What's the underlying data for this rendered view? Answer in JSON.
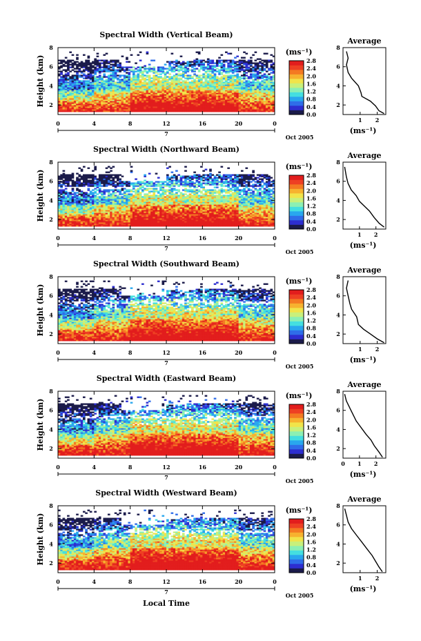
{
  "figure": {
    "xlabel": "Local Time",
    "date_label": "Oct 2005",
    "day_label": "7",
    "colorbar": {
      "unit_label": "(ms⁻¹)",
      "ticks": [
        "0.0",
        "0.4",
        "0.8",
        "1.2",
        "1.6",
        "2.0",
        "2.4",
        "2.8"
      ],
      "colors": [
        "#1b1b4a",
        "#2d2ed0",
        "#2f6de9",
        "#29a7ee",
        "#44dfe0",
        "#8cf0b4",
        "#c9f07b",
        "#f1e44a",
        "#f7b22f",
        "#f47a22",
        "#ee4023",
        "#e21d1d"
      ],
      "range": [
        0.0,
        2.8
      ]
    },
    "average_title": "Average",
    "average_unit_label": "(ms⁻¹)"
  },
  "chart_data": [
    {
      "type": "heatmap",
      "title": "Spectral Width (Vertical Beam)",
      "xlabel": "Local Time",
      "ylabel": "Height (km)",
      "x_ticks": [
        "0",
        "4",
        "8",
        "12",
        "16",
        "20",
        "0"
      ],
      "y_ticks": [
        "2",
        "4",
        "6",
        "8"
      ],
      "xlim": [
        0,
        24
      ],
      "ylim": [
        1,
        8
      ],
      "zlim": [
        0,
        2.8
      ],
      "z_unit": "ms⁻¹",
      "average_profile": {
        "title": "Average",
        "xlabel": "(ms⁻¹)",
        "x_ticks": [
          "1",
          "2"
        ],
        "y_ticks": [
          "2",
          "4",
          "6",
          "8"
        ],
        "xlim": [
          0,
          2.5
        ],
        "ylim": [
          1,
          8
        ],
        "width": [
          2.4,
          2.1,
          1.9,
          1.6,
          1.1,
          1.05,
          0.9,
          0.5,
          0.3,
          0.2,
          0.3,
          0.2
        ],
        "height": [
          1.1,
          1.4,
          1.9,
          2.4,
          2.9,
          3.3,
          4.0,
          4.8,
          5.4,
          6.2,
          6.9,
          7.6
        ]
      }
    },
    {
      "type": "heatmap",
      "title": "Spectral Width (Northward Beam)",
      "xlabel": "Local Time",
      "ylabel": "Height (km)",
      "x_ticks": [
        "0",
        "4",
        "8",
        "12",
        "16",
        "20",
        "0"
      ],
      "y_ticks": [
        "2",
        "4",
        "6",
        "8"
      ],
      "xlim": [
        0,
        24
      ],
      "ylim": [
        1,
        8
      ],
      "zlim": [
        0,
        2.8
      ],
      "z_unit": "ms⁻¹",
      "average_profile": {
        "title": "Average",
        "xlabel": "(ms⁻¹)",
        "x_ticks": [
          "1",
          "2"
        ],
        "y_ticks": [
          "2",
          "4",
          "6",
          "8"
        ],
        "xlim": [
          0,
          2.6
        ],
        "ylim": [
          1,
          8
        ],
        "width": [
          2.5,
          2.2,
          1.9,
          1.6,
          1.3,
          1.0,
          0.8,
          0.5,
          0.3,
          0.2,
          0.1
        ],
        "height": [
          1.2,
          1.6,
          2.2,
          2.9,
          3.4,
          3.9,
          4.5,
          5.1,
          5.8,
          6.5,
          7.5
        ]
      }
    },
    {
      "type": "heatmap",
      "title": "Spectral Width (Southward Beam)",
      "xlabel": "Local Time",
      "ylabel": "Height (km)",
      "x_ticks": [
        "0",
        "4",
        "8",
        "12",
        "16",
        "20",
        "0"
      ],
      "y_ticks": [
        "2",
        "4",
        "6",
        "8"
      ],
      "xlim": [
        0,
        24
      ],
      "ylim": [
        1,
        8
      ],
      "zlim": [
        0,
        2.8
      ],
      "z_unit": "ms⁻¹",
      "average_profile": {
        "title": "Average",
        "xlabel": "(ms⁻¹)",
        "x_ticks": [
          "1",
          "2"
        ],
        "y_ticks": [
          "2",
          "4",
          "6",
          "8"
        ],
        "xlim": [
          0,
          2.5
        ],
        "ylim": [
          1,
          8
        ],
        "width": [
          2.4,
          2.0,
          1.6,
          1.2,
          0.9,
          0.8,
          0.5,
          0.4,
          0.3,
          0.2,
          0.3
        ],
        "height": [
          1.1,
          1.5,
          2.0,
          2.5,
          3.0,
          3.8,
          4.6,
          5.2,
          6.0,
          6.8,
          7.6
        ]
      }
    },
    {
      "type": "heatmap",
      "title": "Spectral Width (Eastward Beam)",
      "xlabel": "Local Time",
      "ylabel": "Height (km)",
      "x_ticks": [
        "0",
        "4",
        "8",
        "12",
        "16",
        "20",
        "0"
      ],
      "y_ticks": [
        "2",
        "4",
        "6",
        "8"
      ],
      "xlim": [
        0,
        24
      ],
      "ylim": [
        1,
        8
      ],
      "zlim": [
        0,
        2.8
      ],
      "z_unit": "ms⁻¹",
      "average_profile": {
        "title": "Average",
        "xlabel": "(ms⁻¹)",
        "x_ticks": [
          "0",
          "1",
          "2"
        ],
        "y_ticks": [
          "2",
          "4",
          "6",
          "8"
        ],
        "xlim": [
          0,
          2.6
        ],
        "ylim": [
          1,
          8
        ],
        "width": [
          2.4,
          2.2,
          1.9,
          1.7,
          1.4,
          1.1,
          0.8,
          0.6,
          0.4,
          0.2,
          0.1
        ],
        "height": [
          1.1,
          1.6,
          2.3,
          2.9,
          3.5,
          4.2,
          4.9,
          5.6,
          6.3,
          7.0,
          7.7
        ]
      }
    },
    {
      "type": "heatmap",
      "title": "Spectral Width (Westward Beam)",
      "xlabel": "Local Time",
      "ylabel": "Height (km)",
      "x_ticks": [
        "0",
        "4",
        "8",
        "12",
        "16",
        "20",
        "0"
      ],
      "y_ticks": [
        "2",
        "4",
        "6",
        "8"
      ],
      "xlim": [
        0,
        24
      ],
      "ylim": [
        1,
        8
      ],
      "zlim": [
        0,
        2.8
      ],
      "z_unit": "ms⁻¹",
      "average_profile": {
        "title": "Average",
        "xlabel": "(ms⁻¹)",
        "x_ticks": [
          "1",
          "2"
        ],
        "y_ticks": [
          "2",
          "4",
          "6",
          "8"
        ],
        "xlim": [
          0,
          2.5
        ],
        "ylim": [
          1,
          8
        ],
        "width": [
          2.3,
          2.1,
          1.9,
          1.7,
          1.4,
          1.1,
          0.8,
          0.5,
          0.3,
          0.2,
          0.1
        ],
        "height": [
          1.1,
          1.6,
          2.2,
          2.8,
          3.5,
          4.2,
          4.9,
          5.6,
          6.3,
          7.0,
          7.7
        ]
      }
    }
  ]
}
